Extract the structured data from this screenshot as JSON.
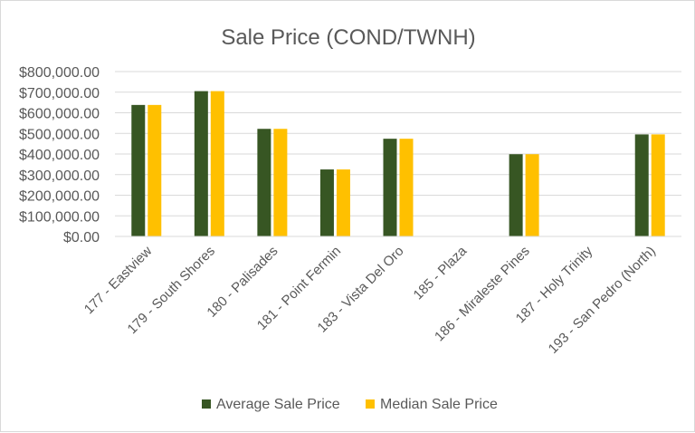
{
  "chart_data": {
    "type": "bar",
    "title": "Sale Price (COND/TWNH)",
    "xlabel": "",
    "ylabel": "",
    "ylim": [
      0,
      800000
    ],
    "y_ticks": [
      "$0.00",
      "$100,000.00",
      "$200,000.00",
      "$300,000.00",
      "$400,000.00",
      "$500,000.00",
      "$600,000.00",
      "$700,000.00",
      "$800,000.00"
    ],
    "y_tick_values": [
      0,
      100000,
      200000,
      300000,
      400000,
      500000,
      600000,
      700000,
      800000
    ],
    "grid": true,
    "legend_position": "bottom",
    "categories": [
      "177 - Eastview",
      "179 - South Shores",
      "180 - Palisades",
      "181 - Point Fermin",
      "183 - Vista Del Oro",
      "185 - Plaza",
      "186 - Miraleste Pines",
      "187 - Holy Trinity",
      "193 - San Pedro (North)"
    ],
    "series": [
      {
        "name": "Average Sale Price",
        "color": "#375623",
        "values": [
          638000,
          705000,
          522000,
          325000,
          474000,
          0,
          399000,
          0,
          495000
        ]
      },
      {
        "name": "Median Sale Price",
        "color": "#FFC000",
        "values": [
          638000,
          705000,
          522000,
          325000,
          474000,
          0,
          399000,
          0,
          495000
        ]
      }
    ]
  }
}
